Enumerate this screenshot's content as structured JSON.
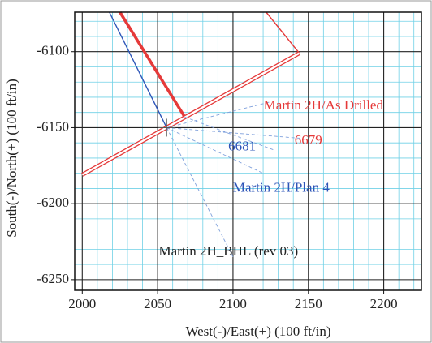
{
  "chart_data": {
    "type": "line",
    "title": "",
    "xlabel": "West(-)/East(+) (100 ft/in)",
    "ylabel": "South(-)/North(+) (100 ft/in)",
    "xlim": [
      1995,
      2225
    ],
    "ylim": [
      -6257,
      -6074
    ],
    "x_ticks": [
      "2000",
      "2050",
      "2100",
      "2150",
      "2200"
    ],
    "y_ticks": [
      "-6100",
      "-6150",
      "-6200",
      "-6250"
    ],
    "grid": true,
    "series": [
      {
        "name": "Martin 2H/As Drilled",
        "color": "#e53a3a",
        "style": "thick",
        "x": [
          2025,
          2068
        ],
        "y": [
          -6074,
          -6143
        ]
      },
      {
        "name": "Martin 2H/Plan 4",
        "color": "#2d55b8",
        "style": "solid",
        "x": [
          2018,
          2056
        ],
        "y": [
          -6074,
          -6150
        ]
      },
      {
        "name": "",
        "color": "#e53a3a",
        "style": "thin",
        "x": [
          2122,
          2144
        ],
        "y": [
          -6074,
          -6101
        ]
      },
      {
        "name": "",
        "color": "#e53a3a",
        "style": "double",
        "x": [
          2000,
          2144
        ],
        "y": [
          -6181,
          -6101
        ]
      },
      {
        "name": "",
        "color": "#7fa0dc",
        "style": "dashed",
        "x": [
          2056,
          2125
        ],
        "y": [
          -6150,
          -6133
        ]
      },
      {
        "name": "",
        "color": "#7fa0dc",
        "style": "dashed",
        "x": [
          2056,
          2145
        ],
        "y": [
          -6150,
          -6157
        ]
      },
      {
        "name": "",
        "color": "#7fa0dc",
        "style": "dashed",
        "x": [
          2056,
          2120
        ],
        "y": [
          -6150,
          -6180
        ]
      },
      {
        "name": "",
        "color": "#7fa0dc",
        "style": "dashed",
        "x": [
          2056,
          2100
        ],
        "y": [
          -6150,
          -6235
        ]
      },
      {
        "name": "",
        "color": "#7fa0dc",
        "style": "dashed",
        "x": [
          2068,
          2128
        ],
        "y": [
          -6143,
          -6165
        ]
      }
    ],
    "annotations": [
      {
        "text": "Martin 2H/As Drilled",
        "x": 2160,
        "y": -6136,
        "color": "#e53a3a"
      },
      {
        "text": "6679",
        "x": 2150,
        "y": -6159,
        "color": "#e53a3a"
      },
      {
        "text": "6681",
        "x": 2106,
        "y": -6163,
        "color": "#2d55b8"
      },
      {
        "text": "Martin 2H/Plan 4",
        "x": 2132,
        "y": -6190,
        "color": "#2d55b8"
      },
      {
        "text": "Martin 2H_BHL (rev 03)",
        "x": 2097,
        "y": -6232,
        "color": "#222222"
      }
    ]
  }
}
